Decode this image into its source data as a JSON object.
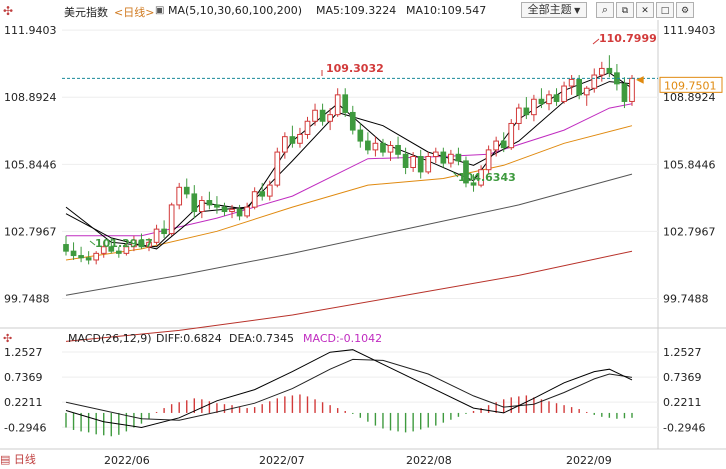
{
  "header": {
    "title": "美元指数",
    "period_label": "<日线>",
    "ma_label": "MA(5,10,30,60,100,200)",
    "ma5_label": "MA5:109.3224",
    "ma10_label": "MA10:109.547",
    "theme_button": "全部主题",
    "icons": [
      "search-icon",
      "window-icon",
      "close-icon",
      "maximize-icon",
      "settings-icon"
    ]
  },
  "macd_header": {
    "label": "MACD(26,12,9)",
    "diff": "DIFF:0.6824",
    "dea": "DEA:0.7345",
    "macd": "MACD:-0.1042"
  },
  "footer": {
    "tab": "日线"
  },
  "colors": {
    "up": "#d23a3a",
    "down": "#3e9a3e",
    "ma5": "#000000",
    "ma10": "#000000",
    "ma30": "#c02cc0",
    "ma60": "#e08a10",
    "ma100": "#555555",
    "ma200": "#b8322a",
    "refline": "#1a8a9a",
    "current_price_box": "#e08a10"
  },
  "chart_data": {
    "type": "candlestick",
    "price_axis_ticks": [
      "111.9403",
      "108.8924",
      "105.8446",
      "102.7967",
      "99.7488"
    ],
    "ylim": [
      98.5,
      112.4
    ],
    "x_ticks": [
      "2022/06",
      "2022/07",
      "2022/08",
      "2022/09"
    ],
    "annotations": {
      "high_1": "109.3032",
      "high_2": "110.7999",
      "low_1": "101.2967",
      "low_2": "104.6343",
      "current_price": "109.7501"
    },
    "reference_line": 109.75,
    "candles": [
      [
        102.2,
        102.6,
        101.7,
        101.9
      ],
      [
        101.9,
        102.3,
        101.5,
        101.7
      ],
      [
        101.7,
        102.1,
        101.4,
        101.6
      ],
      [
        101.6,
        101.9,
        101.3,
        101.5
      ],
      [
        101.5,
        101.9,
        101.3,
        101.8
      ],
      [
        101.8,
        102.3,
        101.6,
        102.1
      ],
      [
        102.1,
        102.5,
        101.8,
        101.9
      ],
      [
        101.9,
        102.1,
        101.6,
        101.8
      ],
      [
        101.8,
        102.3,
        101.7,
        102.1
      ],
      [
        102.1,
        102.6,
        101.9,
        102.4
      ],
      [
        102.4,
        102.7,
        102.0,
        102.1
      ],
      [
        102.1,
        102.5,
        101.9,
        102.3
      ],
      [
        102.3,
        103.1,
        102.2,
        102.9
      ],
      [
        102.9,
        103.3,
        102.5,
        102.7
      ],
      [
        102.7,
        104.1,
        102.6,
        104.0
      ],
      [
        104.0,
        105.0,
        103.8,
        104.8
      ],
      [
        104.8,
        105.2,
        104.3,
        104.5
      ],
      [
        104.5,
        104.9,
        103.4,
        103.7
      ],
      [
        103.7,
        104.4,
        103.4,
        104.2
      ],
      [
        104.2,
        104.6,
        103.8,
        104.0
      ],
      [
        104.0,
        104.4,
        103.6,
        103.9
      ],
      [
        103.9,
        104.1,
        103.5,
        103.7
      ],
      [
        103.7,
        104.0,
        103.4,
        103.8
      ],
      [
        103.8,
        104.0,
        103.3,
        103.5
      ],
      [
        103.5,
        104.1,
        103.4,
        103.9
      ],
      [
        103.9,
        104.8,
        103.8,
        104.6
      ],
      [
        104.6,
        105.0,
        104.2,
        104.4
      ],
      [
        104.4,
        105.1,
        104.2,
        104.9
      ],
      [
        104.9,
        106.6,
        104.8,
        106.4
      ],
      [
        106.4,
        107.3,
        106.1,
        107.1
      ],
      [
        107.1,
        107.6,
        106.6,
        106.8
      ],
      [
        106.8,
        107.5,
        106.6,
        107.2
      ],
      [
        107.2,
        108.0,
        107.0,
        107.8
      ],
      [
        107.8,
        108.6,
        107.6,
        108.3
      ],
      [
        108.3,
        108.6,
        107.6,
        107.8
      ],
      [
        107.8,
        108.4,
        107.4,
        108.1
      ],
      [
        108.1,
        109.3,
        108.0,
        109.0
      ],
      [
        109.0,
        109.3,
        108.0,
        108.2
      ],
      [
        108.2,
        108.5,
        107.2,
        107.4
      ],
      [
        107.4,
        107.7,
        106.6,
        106.9
      ],
      [
        106.9,
        107.3,
        106.3,
        106.5
      ],
      [
        106.5,
        107.1,
        106.2,
        106.8
      ],
      [
        106.8,
        107.0,
        106.2,
        106.4
      ],
      [
        106.4,
        106.9,
        106.0,
        106.7
      ],
      [
        106.7,
        107.1,
        106.1,
        106.3
      ],
      [
        106.3,
        106.6,
        105.4,
        105.7
      ],
      [
        105.7,
        106.4,
        105.5,
        106.2
      ],
      [
        106.2,
        106.5,
        105.2,
        105.5
      ],
      [
        105.5,
        106.4,
        105.4,
        106.2
      ],
      [
        106.2,
        106.6,
        105.9,
        106.4
      ],
      [
        106.4,
        106.6,
        105.7,
        105.9
      ],
      [
        105.9,
        106.5,
        105.7,
        106.3
      ],
      [
        106.3,
        106.6,
        105.8,
        106.0
      ],
      [
        106.0,
        106.2,
        104.8,
        105.0
      ],
      [
        105.0,
        105.4,
        104.6,
        104.9
      ],
      [
        104.9,
        105.8,
        104.8,
        105.6
      ],
      [
        105.6,
        106.7,
        105.4,
        106.5
      ],
      [
        106.5,
        107.1,
        106.2,
        106.9
      ],
      [
        106.9,
        107.3,
        106.4,
        106.6
      ],
      [
        106.6,
        107.9,
        106.5,
        107.7
      ],
      [
        107.7,
        108.6,
        107.4,
        108.4
      ],
      [
        108.4,
        108.9,
        107.9,
        108.1
      ],
      [
        108.1,
        109.0,
        107.8,
        108.8
      ],
      [
        108.8,
        109.3,
        108.4,
        108.6
      ],
      [
        108.6,
        109.2,
        108.3,
        109.0
      ],
      [
        109.0,
        109.3,
        108.5,
        108.7
      ],
      [
        108.7,
        109.6,
        108.6,
        109.4
      ],
      [
        109.4,
        109.9,
        109.0,
        109.7
      ],
      [
        109.7,
        109.9,
        108.8,
        109.0
      ],
      [
        109.0,
        109.4,
        108.5,
        109.3
      ],
      [
        109.3,
        110.2,
        109.1,
        109.9
      ],
      [
        109.9,
        110.5,
        109.6,
        110.2
      ],
      [
        110.2,
        110.8,
        109.8,
        110.0
      ],
      [
        110.0,
        110.4,
        109.2,
        109.5
      ],
      [
        109.5,
        109.8,
        108.4,
        108.7
      ],
      [
        108.7,
        109.9,
        108.5,
        109.75
      ]
    ],
    "ma5": [
      [
        0,
        103.9
      ],
      [
        6,
        102.3
      ],
      [
        12,
        102.1
      ],
      [
        18,
        104.1
      ],
      [
        24,
        103.8
      ],
      [
        30,
        106.9
      ],
      [
        36,
        108.6
      ],
      [
        42,
        106.8
      ],
      [
        48,
        106.0
      ],
      [
        54,
        105.1
      ],
      [
        60,
        107.9
      ],
      [
        66,
        109.2
      ],
      [
        72,
        110.0
      ],
      [
        75,
        109.3
      ]
    ],
    "ma10": [
      [
        0,
        103.6
      ],
      [
        6,
        102.5
      ],
      [
        12,
        102.0
      ],
      [
        18,
        103.7
      ],
      [
        24,
        103.9
      ],
      [
        30,
        106.0
      ],
      [
        36,
        108.2
      ],
      [
        42,
        107.6
      ],
      [
        48,
        106.4
      ],
      [
        54,
        105.8
      ],
      [
        60,
        106.9
      ],
      [
        66,
        108.7
      ],
      [
        72,
        109.6
      ],
      [
        75,
        109.5
      ]
    ],
    "ma30": [
      [
        0,
        102.6
      ],
      [
        10,
        102.6
      ],
      [
        20,
        103.4
      ],
      [
        30,
        104.4
      ],
      [
        40,
        106.1
      ],
      [
        50,
        106.2
      ],
      [
        56,
        106.3
      ],
      [
        66,
        107.4
      ],
      [
        72,
        108.4
      ],
      [
        75,
        108.6
      ]
    ],
    "ma60": [
      [
        0,
        101.5
      ],
      [
        10,
        102.0
      ],
      [
        20,
        102.8
      ],
      [
        30,
        103.9
      ],
      [
        40,
        104.9
      ],
      [
        50,
        105.2
      ],
      [
        58,
        105.8
      ],
      [
        66,
        106.8
      ],
      [
        75,
        107.6
      ]
    ],
    "ma100": [
      [
        0,
        99.9
      ],
      [
        15,
        100.8
      ],
      [
        30,
        101.8
      ],
      [
        45,
        102.9
      ],
      [
        60,
        104.0
      ],
      [
        75,
        105.4
      ]
    ],
    "ma200": [
      [
        0,
        97.8
      ],
      [
        15,
        98.3
      ],
      [
        30,
        99.0
      ],
      [
        45,
        99.9
      ],
      [
        60,
        100.8
      ],
      [
        75,
        101.9
      ]
    ],
    "macd": {
      "ticks": [
        "1.2527",
        "0.7369",
        "0.2211",
        "-0.2946"
      ],
      "ylim": [
        -0.68,
        1.5
      ],
      "diff": [
        [
          0,
          0.05
        ],
        [
          5,
          -0.18
        ],
        [
          10,
          -0.3
        ],
        [
          15,
          -0.1
        ],
        [
          20,
          0.25
        ],
        [
          25,
          0.48
        ],
        [
          30,
          0.85
        ],
        [
          35,
          1.25
        ],
        [
          38,
          1.3
        ],
        [
          42,
          1.0
        ],
        [
          48,
          0.55
        ],
        [
          54,
          0.1
        ],
        [
          58,
          0.0
        ],
        [
          62,
          0.3
        ],
        [
          66,
          0.62
        ],
        [
          70,
          0.85
        ],
        [
          72,
          0.9
        ],
        [
          75,
          0.68
        ]
      ],
      "dea": [
        [
          0,
          0.22
        ],
        [
          5,
          0.05
        ],
        [
          10,
          -0.12
        ],
        [
          15,
          -0.15
        ],
        [
          20,
          0.02
        ],
        [
          25,
          0.2
        ],
        [
          30,
          0.5
        ],
        [
          35,
          0.9
        ],
        [
          38,
          1.1
        ],
        [
          42,
          1.08
        ],
        [
          48,
          0.8
        ],
        [
          54,
          0.35
        ],
        [
          58,
          0.12
        ],
        [
          62,
          0.18
        ],
        [
          66,
          0.42
        ],
        [
          70,
          0.7
        ],
        [
          72,
          0.8
        ],
        [
          75,
          0.73
        ]
      ],
      "hist": [
        -0.3,
        -0.35,
        -0.38,
        -0.4,
        -0.44,
        -0.46,
        -0.48,
        -0.45,
        -0.38,
        -0.3,
        -0.22,
        -0.12,
        0.02,
        0.1,
        0.18,
        0.22,
        0.26,
        0.3,
        0.28,
        0.24,
        0.2,
        0.18,
        0.16,
        0.12,
        0.1,
        0.12,
        0.18,
        0.24,
        0.3,
        0.34,
        0.36,
        0.38,
        0.34,
        0.28,
        0.22,
        0.16,
        0.1,
        0.04,
        -0.02,
        -0.1,
        -0.18,
        -0.26,
        -0.32,
        -0.36,
        -0.38,
        -0.4,
        -0.38,
        -0.34,
        -0.3,
        -0.26,
        -0.2,
        -0.14,
        -0.08,
        -0.02,
        0.04,
        0.1,
        0.16,
        0.22,
        0.28,
        0.32,
        0.34,
        0.36,
        0.32,
        0.28,
        0.24,
        0.2,
        0.16,
        0.12,
        0.08,
        0.02,
        -0.04,
        -0.08,
        -0.1,
        -0.12,
        -0.11,
        -0.1
      ]
    }
  }
}
